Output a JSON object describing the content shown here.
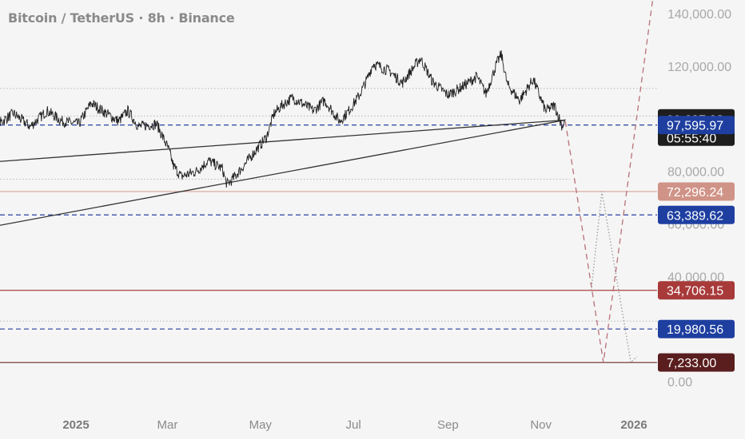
{
  "title": "Bitcoin / TetherUS · 8h · Binance",
  "chart_data": {
    "type": "line",
    "symbol": "Bitcoin / TetherUS",
    "interval": "8h",
    "exchange": "Binance",
    "ylim": [
      0,
      145000
    ],
    "y_ticks": [
      {
        "value": 140000,
        "label": "140,000.00"
      },
      {
        "value": 120000,
        "label": "120,000.00"
      },
      {
        "value": 80000,
        "label": "80,000.00"
      },
      {
        "value": 60000,
        "label": "60,000.00"
      },
      {
        "value": 40000,
        "label": "40,000.00"
      },
      {
        "value": 0,
        "label": "0.00"
      }
    ],
    "x_ticks": [
      {
        "date": "2024-12-31",
        "label": "2025",
        "bold": true
      },
      {
        "date": "2025-03-01",
        "label": "Mar",
        "bold": false
      },
      {
        "date": "2025-05-01",
        "label": "May",
        "bold": false
      },
      {
        "date": "2025-07-01",
        "label": "Jul",
        "bold": false
      },
      {
        "date": "2025-09-01",
        "label": "Sep",
        "bold": false
      },
      {
        "date": "2025-11-01",
        "label": "Nov",
        "bold": false
      },
      {
        "date": "2026-01-01",
        "label": "2026",
        "bold": true
      }
    ],
    "xlim": [
      "2024-10-01",
      "2026-02-08"
    ],
    "price_series": {
      "name": "BTCUSDT 8h",
      "color": "#222222",
      "points": [
        [
          "2024-10-01",
          85000
        ],
        [
          "2024-10-10",
          92000
        ],
        [
          "2024-10-22",
          97000
        ],
        [
          "2024-11-05",
          96000
        ],
        [
          "2024-11-20",
          102000
        ],
        [
          "2024-12-01",
          97000
        ],
        [
          "2024-12-12",
          103000
        ],
        [
          "2024-12-22",
          99000
        ],
        [
          "2025-01-02",
          98000
        ],
        [
          "2025-01-10",
          106000
        ],
        [
          "2025-01-20",
          102000
        ],
        [
          "2025-01-28",
          99000
        ],
        [
          "2025-02-03",
          103000
        ],
        [
          "2025-02-10",
          97000
        ],
        [
          "2025-02-22",
          98000
        ],
        [
          "2025-03-02",
          88000
        ],
        [
          "2025-03-05",
          82000
        ],
        [
          "2025-03-10",
          78000
        ],
        [
          "2025-03-20",
          80000
        ],
        [
          "2025-03-28",
          84000
        ],
        [
          "2025-04-06",
          81000
        ],
        [
          "2025-04-09",
          75000
        ],
        [
          "2025-04-12",
          76500
        ],
        [
          "2025-04-20",
          82000
        ],
        [
          "2025-04-28",
          88000
        ],
        [
          "2025-05-05",
          93000
        ],
        [
          "2025-05-10",
          102000
        ],
        [
          "2025-05-15",
          105000
        ],
        [
          "2025-05-22",
          108000
        ],
        [
          "2025-05-28",
          106000
        ],
        [
          "2025-06-05",
          103000
        ],
        [
          "2025-06-12",
          107000
        ],
        [
          "2025-06-22",
          99000
        ],
        [
          "2025-06-28",
          103000
        ],
        [
          "2025-07-05",
          109000
        ],
        [
          "2025-07-10",
          115000
        ],
        [
          "2025-07-14",
          121000
        ],
        [
          "2025-07-25",
          118000
        ],
        [
          "2025-08-02",
          113500
        ],
        [
          "2025-08-12",
          121500
        ],
        [
          "2025-08-14",
          123000
        ],
        [
          "2025-08-22",
          114000
        ],
        [
          "2025-09-01",
          109000
        ],
        [
          "2025-09-10",
          112000
        ],
        [
          "2025-09-20",
          116000
        ],
        [
          "2025-09-26",
          109500
        ],
        [
          "2025-10-03",
          121000
        ],
        [
          "2025-10-06",
          124500
        ],
        [
          "2025-10-10",
          113000
        ],
        [
          "2025-10-18",
          107000
        ],
        [
          "2025-10-27",
          115000
        ],
        [
          "2025-11-04",
          103000
        ],
        [
          "2025-11-10",
          105000
        ],
        [
          "2025-11-15",
          97000
        ],
        [
          "2025-11-17",
          99687.28
        ]
      ]
    },
    "trendlines": [
      {
        "from": [
          "2024-10-01",
          82000
        ],
        "to": [
          "2025-11-17",
          99500
        ],
        "color": "#333333"
      },
      {
        "from": [
          "2024-10-01",
          55000
        ],
        "to": [
          "2025-11-17",
          99500
        ],
        "color": "#333333"
      }
    ],
    "dotted_levels": [
      {
        "value": 111500,
        "from": "2024-10-01",
        "to": "2026-02-08"
      },
      {
        "value": 101000,
        "from": "2024-10-01",
        "to": "2026-02-08"
      },
      {
        "value": 77000,
        "from": "2024-10-01",
        "to": "2025-11-20"
      },
      {
        "value": 23000,
        "from": "2024-10-01",
        "to": "2026-02-08"
      }
    ],
    "projections": [
      {
        "style": "dashed",
        "color": "#b87078",
        "points": [
          [
            "2025-11-17",
            99000
          ],
          [
            "2025-12-12",
            7233
          ],
          [
            "2026-02-08",
            255000
          ]
        ]
      },
      {
        "style": "dotted",
        "color": "#999999",
        "points": [
          [
            "2025-12-04",
            34706
          ],
          [
            "2025-12-11",
            72296
          ],
          [
            "2025-12-30",
            7233
          ],
          [
            "2026-01-03",
            9500
          ]
        ]
      }
    ],
    "price_levels": [
      {
        "value": 99687.28,
        "label": "99,687.28",
        "sub": "05:55:40",
        "badge_color": "#1e1e1e",
        "line": "none"
      },
      {
        "value": 97595.97,
        "label": "97,595.97",
        "badge_color": "#1e3fa0",
        "line": "dashed",
        "line_color": "#2a3f9e"
      },
      {
        "value": 72296.24,
        "label": "72,296.24",
        "badge_color": "#d09387",
        "line": "solid",
        "line_color": "#dba59b"
      },
      {
        "value": 63389.62,
        "label": "63,389.62",
        "badge_color": "#1e3fa0",
        "line": "dashed",
        "line_color": "#2a3f9e"
      },
      {
        "value": 34706.15,
        "label": "34,706.15",
        "badge_color": "#a83a3a",
        "line": "solid",
        "line_color": "#a84040"
      },
      {
        "value": 19980.56,
        "label": "19,980.56",
        "badge_color": "#1e3fa0",
        "line": "dashed",
        "line_color": "#2a3f9e"
      },
      {
        "value": 7233.0,
        "label": "7,233.00",
        "badge_color": "#5a1e1e",
        "line": "solid",
        "line_color": "#6b2a2a"
      }
    ],
    "grid": false
  }
}
